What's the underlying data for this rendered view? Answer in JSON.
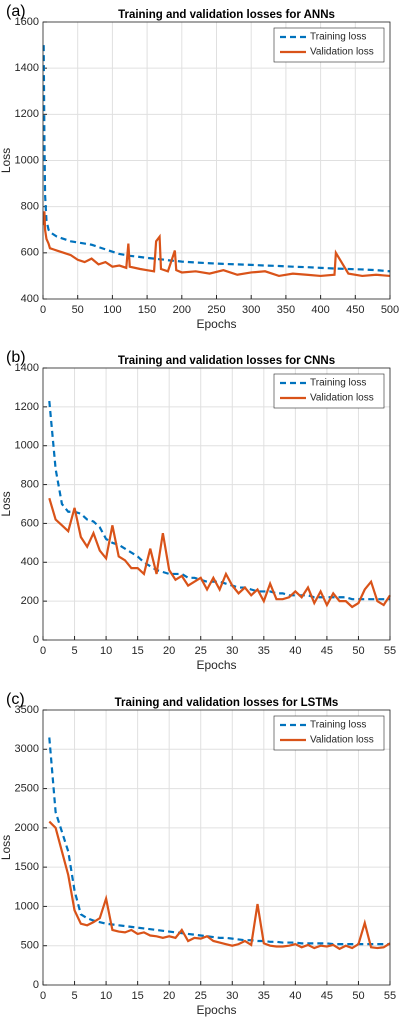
{
  "chart_data": [
    {
      "type": "line",
      "panel_label": "(a)",
      "title": "Training and validation losses for ANNs",
      "xlabel": "Epochs",
      "ylabel": "Loss",
      "x": [
        1,
        2,
        3,
        5,
        8,
        10,
        15,
        20,
        30,
        40,
        50,
        60,
        70,
        80,
        90,
        100,
        110,
        120,
        123,
        125,
        140,
        150,
        160,
        163,
        168,
        170,
        180,
        190,
        192,
        200,
        220,
        240,
        260,
        280,
        300,
        320,
        340,
        360,
        380,
        400,
        420,
        422,
        440,
        460,
        480,
        500
      ],
      "series": [
        {
          "name": "Training loss",
          "color": "#0072bd",
          "linestyle": "dashed",
          "values": [
            1500,
            1100,
            850,
            740,
            700,
            690,
            680,
            670,
            660,
            650,
            645,
            640,
            635,
            625,
            615,
            605,
            595,
            590,
            588,
            587,
            582,
            578,
            575,
            574,
            572,
            572,
            568,
            565,
            565,
            562,
            558,
            555,
            552,
            550,
            548,
            545,
            543,
            540,
            538,
            535,
            532,
            532,
            530,
            528,
            525,
            520
          ]
        },
        {
          "name": "Validation loss",
          "color": "#d95319",
          "linestyle": "solid",
          "values": [
            720,
            780,
            700,
            660,
            640,
            620,
            615,
            610,
            600,
            590,
            570,
            560,
            575,
            550,
            560,
            540,
            545,
            535,
            640,
            540,
            530,
            525,
            520,
            650,
            670,
            530,
            520,
            610,
            525,
            515,
            520,
            510,
            525,
            505,
            515,
            520,
            500,
            510,
            505,
            500,
            505,
            600,
            510,
            500,
            505,
            500
          ]
        }
      ],
      "xlim": [
        0,
        500
      ],
      "xticks": [
        0,
        50,
        100,
        150,
        200,
        250,
        300,
        350,
        400,
        450,
        500
      ],
      "ylim": [
        400,
        1600
      ],
      "yticks": [
        400,
        600,
        800,
        1000,
        1200,
        1400,
        1600
      ],
      "grid": true,
      "legend": "upper right"
    },
    {
      "type": "line",
      "panel_label": "(b)",
      "title": "Training and validation losses for CNNs",
      "xlabel": "Epochs",
      "ylabel": "Loss",
      "x": [
        1,
        2,
        3,
        4,
        5,
        6,
        7,
        8,
        9,
        10,
        11,
        12,
        13,
        14,
        15,
        16,
        17,
        18,
        19,
        20,
        21,
        22,
        23,
        24,
        25,
        26,
        27,
        28,
        29,
        30,
        31,
        32,
        33,
        34,
        35,
        36,
        37,
        38,
        39,
        40,
        41,
        42,
        43,
        44,
        45,
        46,
        47,
        48,
        49,
        50,
        51,
        52,
        53,
        54,
        55
      ],
      "series": [
        {
          "name": "Training loss",
          "color": "#0072bd",
          "linestyle": "dashed",
          "values": [
            1230,
            880,
            700,
            660,
            660,
            650,
            620,
            610,
            580,
            520,
            500,
            490,
            470,
            450,
            430,
            400,
            380,
            360,
            350,
            340,
            340,
            340,
            320,
            320,
            310,
            300,
            300,
            300,
            290,
            280,
            270,
            270,
            260,
            250,
            250,
            250,
            240,
            240,
            230,
            230,
            230,
            230,
            220,
            220,
            220,
            220,
            220,
            220,
            210,
            210,
            210,
            210,
            210,
            210,
            210
          ]
        },
        {
          "name": "Validation loss",
          "color": "#d95319",
          "linestyle": "solid",
          "values": [
            730,
            620,
            590,
            560,
            680,
            530,
            480,
            550,
            460,
            420,
            590,
            430,
            410,
            370,
            370,
            340,
            470,
            340,
            550,
            360,
            310,
            330,
            280,
            300,
            320,
            260,
            320,
            260,
            340,
            280,
            240,
            270,
            230,
            260,
            200,
            290,
            210,
            210,
            220,
            250,
            220,
            270,
            190,
            250,
            180,
            240,
            200,
            200,
            170,
            190,
            260,
            300,
            200,
            180,
            230
          ]
        }
      ],
      "xlim": [
        0,
        55
      ],
      "xticks": [
        0,
        5,
        10,
        15,
        20,
        25,
        30,
        35,
        40,
        45,
        50,
        55
      ],
      "ylim": [
        0,
        1400
      ],
      "yticks": [
        0,
        200,
        400,
        600,
        800,
        1000,
        1200,
        1400
      ],
      "grid": true,
      "legend": "upper right"
    },
    {
      "type": "line",
      "panel_label": "(c)",
      "title": "Training and validation losses for LSTMs",
      "xlabel": "Epochs",
      "ylabel": "Loss",
      "x": [
        1,
        2,
        3,
        4,
        5,
        6,
        7,
        8,
        9,
        10,
        11,
        12,
        13,
        14,
        15,
        16,
        17,
        18,
        19,
        20,
        21,
        22,
        23,
        24,
        25,
        26,
        27,
        28,
        29,
        30,
        31,
        32,
        33,
        34,
        35,
        36,
        37,
        38,
        39,
        40,
        41,
        42,
        43,
        44,
        45,
        46,
        47,
        48,
        49,
        50,
        51,
        52,
        53,
        54,
        55
      ],
      "series": [
        {
          "name": "Training loss",
          "color": "#0072bd",
          "linestyle": "dashed",
          "values": [
            3150,
            2200,
            1950,
            1700,
            1200,
            900,
            850,
            820,
            800,
            780,
            770,
            760,
            750,
            740,
            730,
            720,
            710,
            700,
            690,
            680,
            670,
            660,
            650,
            640,
            630,
            620,
            610,
            600,
            600,
            590,
            580,
            570,
            570,
            560,
            560,
            550,
            550,
            540,
            540,
            540,
            530,
            530,
            530,
            530,
            530,
            520,
            520,
            520,
            520,
            520,
            520,
            520,
            520,
            520,
            520
          ]
        },
        {
          "name": "Validation loss",
          "color": "#d95319",
          "linestyle": "solid",
          "values": [
            2080,
            2000,
            1700,
            1400,
            950,
            780,
            760,
            800,
            850,
            1100,
            700,
            680,
            670,
            700,
            650,
            670,
            630,
            620,
            600,
            620,
            600,
            700,
            560,
            600,
            590,
            620,
            560,
            540,
            520,
            500,
            520,
            560,
            510,
            1030,
            530,
            500,
            490,
            490,
            500,
            520,
            480,
            510,
            470,
            500,
            490,
            510,
            460,
            500,
            470,
            520,
            790,
            480,
            470,
            480,
            530
          ]
        }
      ],
      "xlim": [
        0,
        55
      ],
      "xticks": [
        0,
        5,
        10,
        15,
        20,
        25,
        30,
        35,
        40,
        45,
        50,
        55
      ],
      "ylim": [
        0,
        3500
      ],
      "yticks": [
        0,
        500,
        1000,
        1500,
        2000,
        2500,
        3000,
        3500
      ],
      "grid": true,
      "legend": "upper right"
    }
  ]
}
